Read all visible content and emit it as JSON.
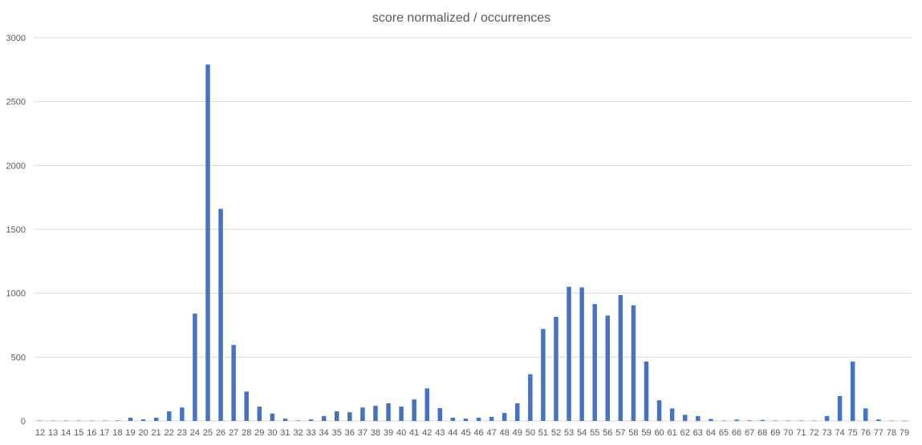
{
  "chart_data": {
    "type": "bar",
    "title": "score normalized / occurrences",
    "xlabel": "",
    "ylabel": "",
    "ylim": [
      0,
      3000
    ],
    "yticks": [
      0,
      500,
      1000,
      1500,
      2000,
      2500,
      3000
    ],
    "grid": true,
    "legend": "none",
    "bar_color": "#4472c4",
    "categories": [
      "12",
      "13",
      "14",
      "15",
      "16",
      "17",
      "18",
      "19",
      "20",
      "21",
      "22",
      "23",
      "24",
      "25",
      "26",
      "27",
      "28",
      "29",
      "30",
      "31",
      "32",
      "33",
      "34",
      "35",
      "36",
      "37",
      "38",
      "39",
      "40",
      "41",
      "42",
      "43",
      "44",
      "45",
      "46",
      "47",
      "48",
      "49",
      "50",
      "51",
      "52",
      "53",
      "54",
      "55",
      "56",
      "57",
      "58",
      "59",
      "60",
      "61",
      "62",
      "63",
      "64",
      "65",
      "66",
      "67",
      "68",
      "69",
      "70",
      "71",
      "72",
      "73",
      "74",
      "75",
      "76",
      "77",
      "78",
      "79"
    ],
    "values": [
      3,
      2,
      3,
      3,
      2,
      2,
      4,
      25,
      12,
      25,
      75,
      105,
      840,
      2790,
      1660,
      595,
      230,
      112,
      58,
      18,
      4,
      12,
      38,
      75,
      68,
      105,
      118,
      138,
      112,
      168,
      255,
      100,
      25,
      18,
      25,
      32,
      62,
      138,
      365,
      720,
      815,
      1050,
      1045,
      915,
      825,
      985,
      905,
      465,
      162,
      98,
      48,
      38,
      15,
      3,
      10,
      5,
      8,
      3,
      3,
      3,
      3,
      38,
      195,
      465,
      98,
      12,
      3,
      2
    ]
  }
}
